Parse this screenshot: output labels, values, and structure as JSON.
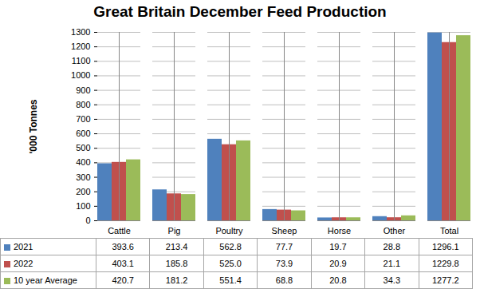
{
  "chart_data": {
    "type": "bar",
    "title": "Great Britain December Feed Production",
    "y_label": "'000 Tonnes",
    "categories": [
      "Cattle",
      "Pig",
      "Poultry",
      "Sheep",
      "Horse",
      "Other",
      "Total"
    ],
    "series": [
      {
        "name": "2021",
        "color": "#4f81bd",
        "values": [
          393.6,
          213.4,
          562.8,
          77.7,
          19.7,
          28.8,
          1296.1
        ],
        "value_labels": [
          "393.6",
          "213.4",
          "562.8",
          "77.7",
          "19.7",
          "28.8",
          "1296.1"
        ]
      },
      {
        "name": "2022",
        "color": "#c0504d",
        "values": [
          403.1,
          185.8,
          525.0,
          73.9,
          20.9,
          21.1,
          1229.8
        ],
        "value_labels": [
          "403.1",
          "185.8",
          "525.0",
          "73.9",
          "20.9",
          "21.1",
          "1229.8"
        ]
      },
      {
        "name": "10 year Average",
        "color": "#9bbb59",
        "values": [
          420.7,
          181.2,
          551.4,
          68.8,
          20.8,
          34.3,
          1277.2
        ],
        "value_labels": [
          "420.7",
          "181.2",
          "551.4",
          "68.8",
          "20.8",
          "34.3",
          "1277.2"
        ]
      }
    ],
    "ylim": [
      0,
      1300
    ],
    "yticks": [
      0,
      100,
      200,
      300,
      400,
      500,
      600,
      700,
      800,
      900,
      1000,
      1100,
      1200,
      1300
    ],
    "grid": true
  }
}
